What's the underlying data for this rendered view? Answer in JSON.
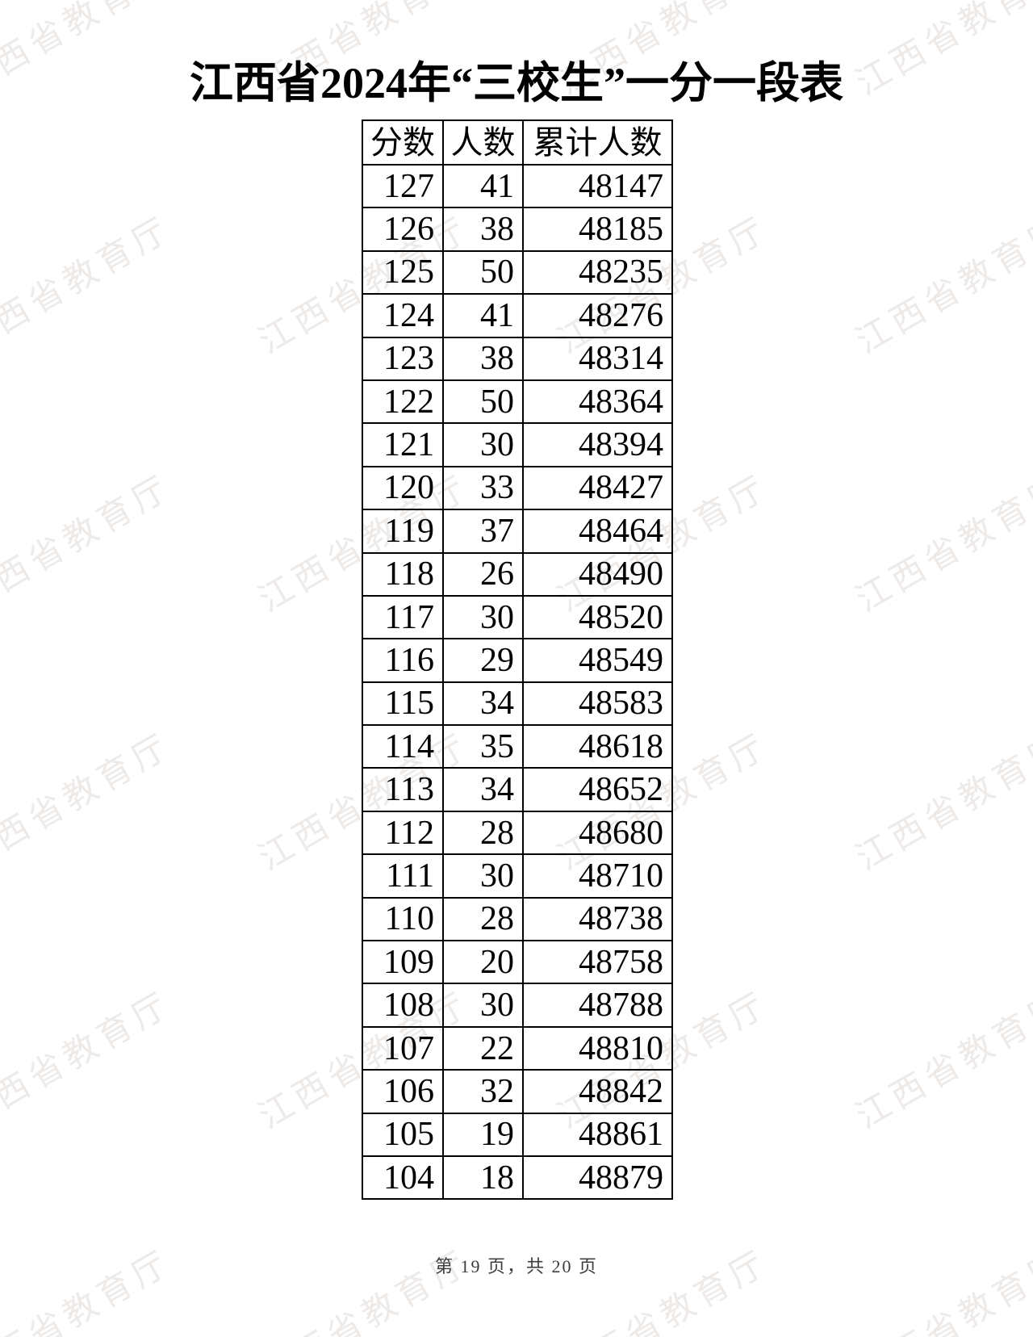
{
  "title": "江西省2024年“三校生”一分一段表",
  "watermark": {
    "text": "江西省教育厅"
  },
  "table": {
    "headers": [
      "分数",
      "人数",
      "累计人数"
    ],
    "rows": [
      [
        127,
        41,
        48147
      ],
      [
        126,
        38,
        48185
      ],
      [
        125,
        50,
        48235
      ],
      [
        124,
        41,
        48276
      ],
      [
        123,
        38,
        48314
      ],
      [
        122,
        50,
        48364
      ],
      [
        121,
        30,
        48394
      ],
      [
        120,
        33,
        48427
      ],
      [
        119,
        37,
        48464
      ],
      [
        118,
        26,
        48490
      ],
      [
        117,
        30,
        48520
      ],
      [
        116,
        29,
        48549
      ],
      [
        115,
        34,
        48583
      ],
      [
        114,
        35,
        48618
      ],
      [
        113,
        34,
        48652
      ],
      [
        112,
        28,
        48680
      ],
      [
        111,
        30,
        48710
      ],
      [
        110,
        28,
        48738
      ],
      [
        109,
        20,
        48758
      ],
      [
        108,
        30,
        48788
      ],
      [
        107,
        22,
        48810
      ],
      [
        106,
        32,
        48842
      ],
      [
        105,
        19,
        48861
      ],
      [
        104,
        18,
        48879
      ]
    ]
  },
  "footer": {
    "page_label": "第 19 页，共 20 页"
  },
  "colors": {
    "border": "#000000",
    "watermark": "#edeae8",
    "footer_text": "#3c3c3c",
    "background": "#ffffff"
  }
}
